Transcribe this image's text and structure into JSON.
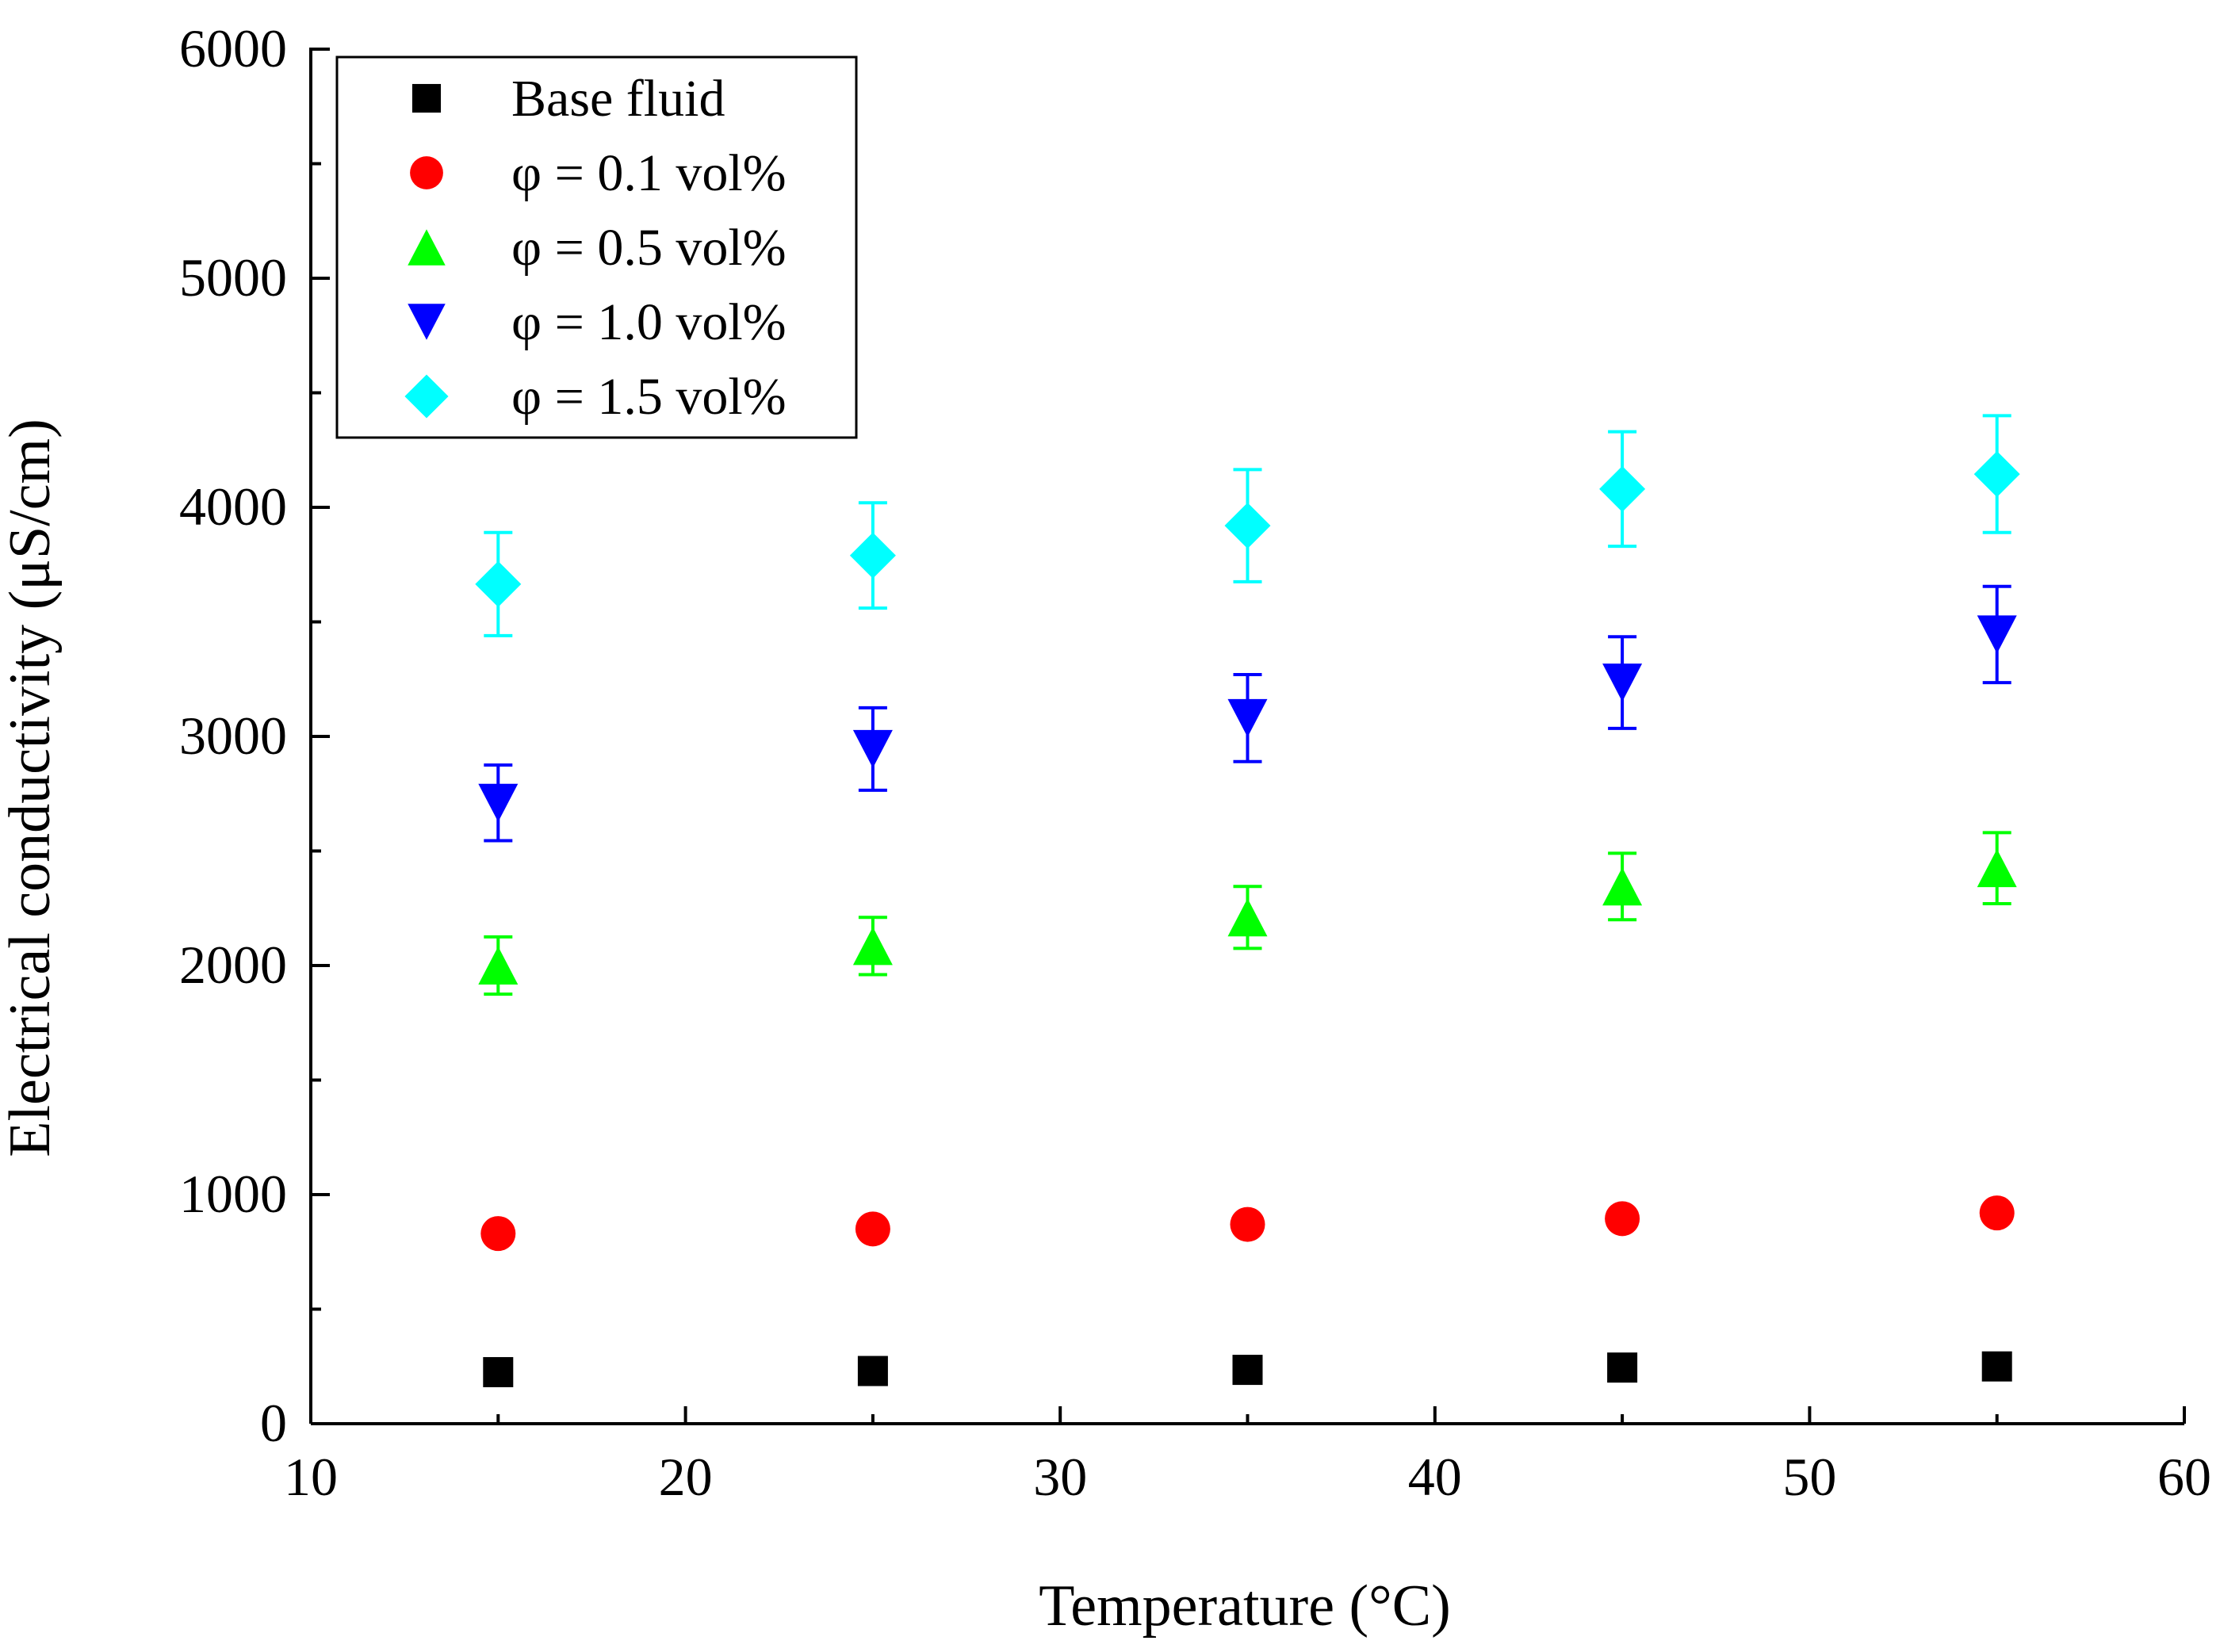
{
  "chart_data": {
    "type": "scatter",
    "title": "",
    "xlabel": "Temperature (°C)",
    "ylabel": "Electrical conductivity (μS/cm)",
    "xlim": [
      10,
      60
    ],
    "ylim": [
      0,
      6000
    ],
    "xticks": [
      "10",
      "20",
      "30",
      "40",
      "50",
      "60"
    ],
    "yticks": [
      "0",
      "1000",
      "2000",
      "3000",
      "4000",
      "5000",
      "6000"
    ],
    "grid": false,
    "legend_position": "top-left",
    "x": [
      15,
      25,
      35,
      45,
      55
    ],
    "series": [
      {
        "name": "Base fluid",
        "marker": "square",
        "color": "#000000",
        "values": [
          225,
          230,
          235,
          245,
          250
        ],
        "errors": [
          0,
          0,
          0,
          0,
          0
        ]
      },
      {
        "name": "φ = 0.1 vol%",
        "marker": "circle",
        "color": "#ff0000",
        "values": [
          830,
          850,
          870,
          895,
          920
        ],
        "errors": [
          30,
          30,
          30,
          30,
          30
        ]
      },
      {
        "name": "φ = 0.5 vol%",
        "marker": "triangle-up",
        "color": "#00ff00",
        "values": [
          2000,
          2085,
          2210,
          2345,
          2425
        ],
        "errors": [
          125,
          125,
          135,
          145,
          155
        ]
      },
      {
        "name": "φ = 1.0 vol%",
        "marker": "triangle-down",
        "color": "#0000ff",
        "values": [
          2710,
          2945,
          3080,
          3235,
          3445
        ],
        "errors": [
          165,
          180,
          190,
          200,
          210
        ]
      },
      {
        "name": "φ = 1.5 vol%",
        "marker": "diamond",
        "color": "#00ffff",
        "values": [
          3665,
          3790,
          3920,
          4080,
          4145
        ],
        "errors": [
          225,
          230,
          245,
          250,
          255
        ]
      }
    ]
  }
}
